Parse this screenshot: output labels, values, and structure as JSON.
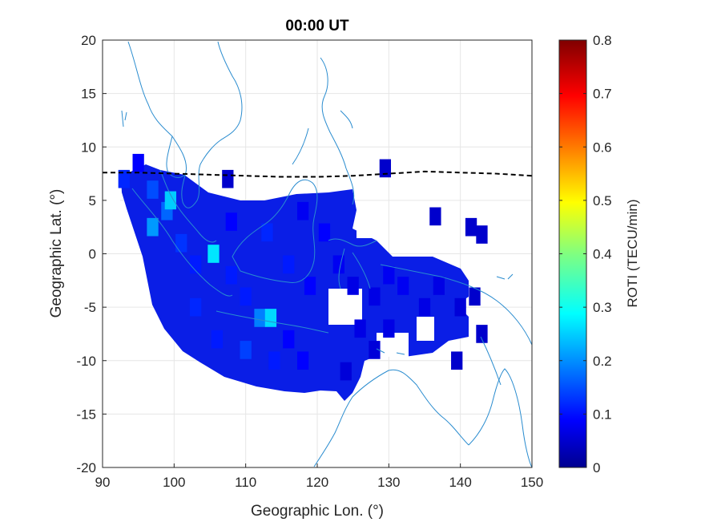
{
  "chart_data": {
    "type": "heatmap",
    "title": "00:00 UT",
    "xlabel": "Geographic Lon. (°)",
    "ylabel": "Geographic Lat. (°)",
    "xlim": [
      90,
      150
    ],
    "ylim": [
      -20,
      20
    ],
    "xticks": [
      "90",
      "100",
      "110",
      "120",
      "130",
      "140",
      "150"
    ],
    "yticks": [
      "20",
      "15",
      "10",
      "5",
      "0",
      "-5",
      "-10",
      "-15",
      "-20"
    ],
    "grid": true,
    "colorbar": {
      "label": "ROTI (TECU/min)",
      "colormap": "jet",
      "range": [
        0,
        0.8
      ],
      "ticks": [
        "0",
        "0.1",
        "0.2",
        "0.3",
        "0.4",
        "0.5",
        "0.6",
        "0.7",
        "0.8"
      ]
    },
    "magnetic_equator": {
      "style": "dashed",
      "color": "#000000",
      "points": [
        [
          90,
          7.6
        ],
        [
          95,
          7.6
        ],
        [
          100,
          7.5
        ],
        [
          105,
          7.4
        ],
        [
          110,
          7.3
        ],
        [
          115,
          7.2
        ],
        [
          120,
          7.2
        ],
        [
          125,
          7.3
        ],
        [
          130,
          7.5
        ],
        [
          135,
          7.7
        ],
        [
          140,
          7.6
        ],
        [
          145,
          7.5
        ],
        [
          150,
          7.3
        ]
      ]
    },
    "coastline_color": "#1f77b4",
    "roti_cells": [
      [
        93,
        7,
        0.13
      ],
      [
        95,
        8.5,
        0.1
      ],
      [
        97,
        6,
        0.16
      ],
      [
        99,
        4,
        0.18
      ],
      [
        99.5,
        5,
        0.26
      ],
      [
        97,
        2.5,
        0.22
      ],
      [
        101,
        1,
        0.14
      ],
      [
        103,
        -1,
        0.12
      ],
      [
        105.5,
        0,
        0.28
      ],
      [
        108,
        -2,
        0.12
      ],
      [
        110,
        -4,
        0.12
      ],
      [
        112,
        -6,
        0.2
      ],
      [
        113.5,
        -6,
        0.27
      ],
      [
        116,
        -8,
        0.1
      ],
      [
        118,
        -10,
        0.1
      ],
      [
        103,
        -5,
        0.13
      ],
      [
        106,
        -8,
        0.12
      ],
      [
        110,
        -9,
        0.15
      ],
      [
        114,
        -10,
        0.12
      ],
      [
        108,
        3,
        0.1
      ],
      [
        113,
        2,
        0.13
      ],
      [
        116,
        -1,
        0.12
      ],
      [
        119,
        -3,
        0.1
      ],
      [
        121,
        2,
        0.1
      ],
      [
        118,
        4,
        0.09
      ],
      [
        123,
        -1,
        0.09
      ],
      [
        125,
        -3,
        0.08
      ],
      [
        128,
        -4,
        0.08
      ],
      [
        130,
        -2,
        0.09
      ],
      [
        132,
        -3,
        0.09
      ],
      [
        135,
        -5,
        0.08
      ],
      [
        137,
        -3,
        0.08
      ],
      [
        140,
        -5,
        0.07
      ],
      [
        126,
        -7,
        0.08
      ],
      [
        130,
        -7,
        0.08
      ],
      [
        124,
        -11,
        0.07
      ],
      [
        128,
        -9,
        0.07
      ],
      [
        107.5,
        7,
        0.06
      ],
      [
        129.5,
        8,
        0.06
      ],
      [
        136.5,
        3.5,
        0.06
      ],
      [
        141.5,
        2.5,
        0.06
      ],
      [
        143,
        1.8,
        0.06
      ],
      [
        142,
        -4,
        0.06
      ],
      [
        143,
        -7.5,
        0.06
      ],
      [
        139.5,
        -10,
        0.06
      ]
    ]
  }
}
